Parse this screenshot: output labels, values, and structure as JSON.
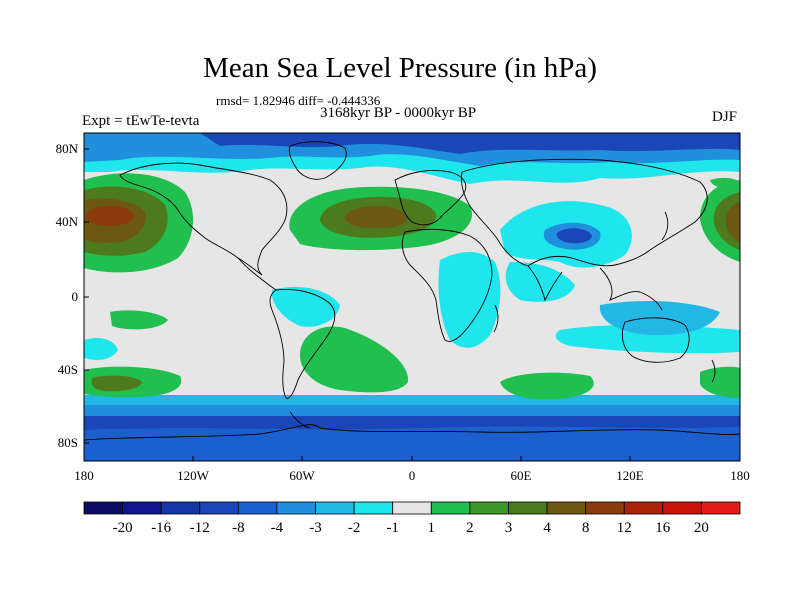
{
  "title": "Mean Sea Level Pressure (in hPa)",
  "stats_line": "rmsd= 1.82946 diff= -0.444336",
  "period": "3168kyr BP - 0000kyr BP",
  "experiment": "Expt = tEwTe-tevta",
  "season": "DJF",
  "axes": {
    "y_ticks": [
      "80N",
      "40N",
      "0",
      "40S",
      "80S"
    ],
    "x_ticks": [
      "180",
      "120W",
      "60W",
      "0",
      "60E",
      "120E",
      "180"
    ]
  },
  "colorbar": {
    "labels": [
      "-20",
      "-16",
      "-12",
      "-8",
      "-4",
      "-3",
      "-2",
      "-1",
      "1",
      "2",
      "3",
      "4",
      "8",
      "12",
      "16",
      "20"
    ],
    "colors": [
      "#0b0b62",
      "#0f1490",
      "#1535a8",
      "#1a46b8",
      "#1c5fcf",
      "#2190dc",
      "#23b7e6",
      "#1fe6ec",
      "#e6e6e6",
      "#20bf4f",
      "#3c9628",
      "#4d7a1c",
      "#6b5812",
      "#8c3c0c",
      "#a82308",
      "#c8120a",
      "#e41a1a"
    ]
  },
  "map_colors": {
    "neutral": "#e6e6e6",
    "deep_blue": "#1a46b8",
    "mid_blue": "#2190dc",
    "light_blue": "#1fe6ec",
    "sky_blue": "#23b7e6",
    "green": "#20bf4f",
    "olive": "#4d7a1c",
    "brown": "#6b5812",
    "coast": "#000000"
  }
}
